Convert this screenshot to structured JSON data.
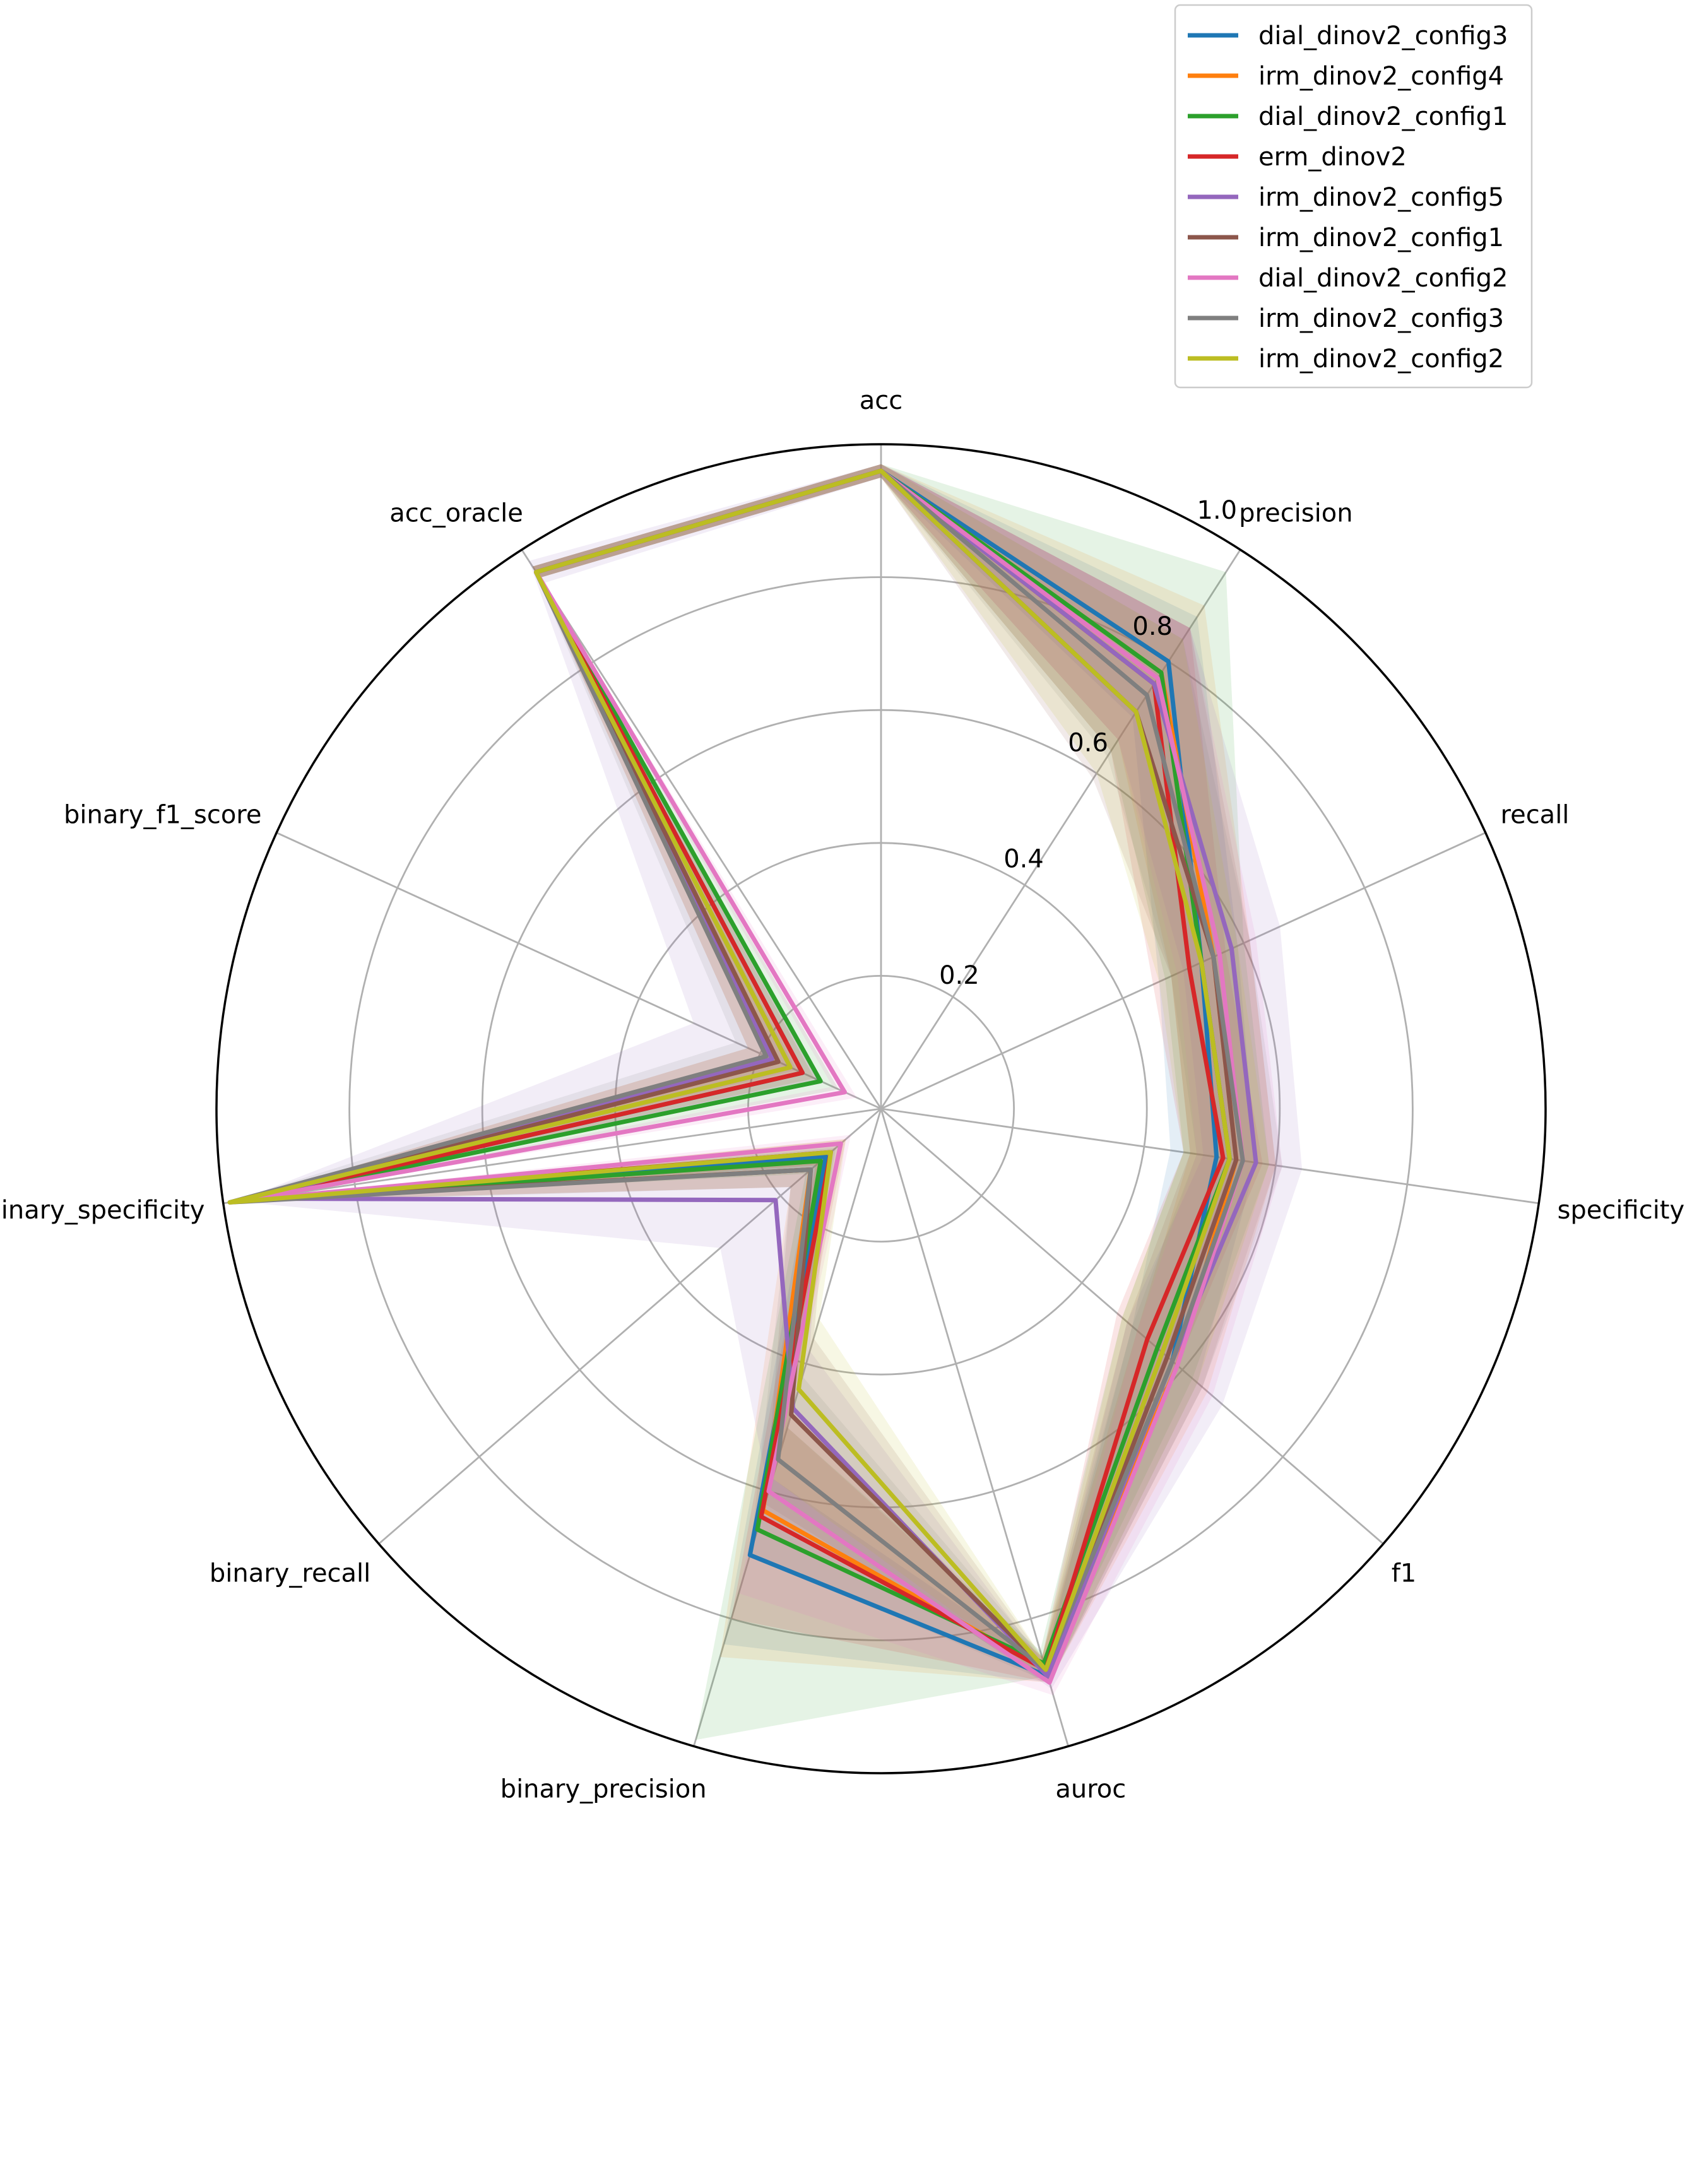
{
  "chart_data": {
    "type": "radar",
    "title": "",
    "axes": [
      "acc",
      "precision",
      "recall",
      "specificity",
      "f1",
      "auroc",
      "binary_precision",
      "binary_recall",
      "binary_specificity",
      "binary_f1_score",
      "acc_oracle"
    ],
    "rlim": [
      0,
      1.0
    ],
    "radial_ticks": [
      0.2,
      0.4,
      0.6,
      0.8,
      1.0
    ],
    "radial_tick_labels": [
      "0.2",
      "0.4",
      "0.6",
      "0.8",
      "1.0"
    ],
    "grid": true,
    "legend_position": "top-right",
    "series": [
      {
        "name": "dial_dinov2_config3",
        "color": "#1f77b4",
        "values": [
          0.96,
          0.8,
          0.53,
          0.51,
          0.58,
          0.89,
          0.7,
          0.11,
          0.97,
          0.13,
          0.96
        ],
        "lower": [
          0.95,
          0.7,
          0.46,
          0.44,
          0.5,
          0.87,
          0.58,
          0.08,
          0.96,
          0.1,
          0.95
        ],
        "upper": [
          0.97,
          0.88,
          0.59,
          0.57,
          0.63,
          0.9,
          0.84,
          0.14,
          0.98,
          0.17,
          0.97
        ]
      },
      {
        "name": "irm_dinov2_config4",
        "color": "#ff7f0e",
        "values": [
          0.96,
          0.78,
          0.55,
          0.54,
          0.59,
          0.88,
          0.63,
          0.14,
          0.97,
          0.17,
          0.96
        ],
        "lower": [
          0.95,
          0.66,
          0.48,
          0.47,
          0.51,
          0.86,
          0.48,
          0.1,
          0.96,
          0.13,
          0.95
        ],
        "upper": [
          0.97,
          0.9,
          0.61,
          0.6,
          0.65,
          0.9,
          0.86,
          0.18,
          0.98,
          0.22,
          0.97
        ]
      },
      {
        "name": "dial_dinov2_config1",
        "color": "#2ca02c",
        "values": [
          0.96,
          0.78,
          0.53,
          0.53,
          0.55,
          0.87,
          0.66,
          0.12,
          0.97,
          0.1,
          0.96
        ],
        "lower": [
          0.95,
          0.64,
          0.47,
          0.46,
          0.48,
          0.85,
          0.5,
          0.09,
          0.96,
          0.07,
          0.95
        ],
        "upper": [
          0.97,
          0.96,
          0.6,
          0.59,
          0.62,
          0.89,
          0.99,
          0.15,
          0.98,
          0.13,
          0.97
        ]
      },
      {
        "name": "erm_dinov2",
        "color": "#d62728",
        "values": [
          0.96,
          0.76,
          0.51,
          0.52,
          0.53,
          0.88,
          0.64,
          0.1,
          0.97,
          0.13,
          0.96
        ],
        "lower": [
          0.95,
          0.64,
          0.45,
          0.46,
          0.47,
          0.86,
          0.5,
          0.07,
          0.96,
          0.1,
          0.95
        ],
        "upper": [
          0.97,
          0.86,
          0.57,
          0.58,
          0.59,
          0.9,
          0.8,
          0.13,
          0.98,
          0.17,
          0.97
        ]
      },
      {
        "name": "irm_dinov2_config5",
        "color": "#9467bd",
        "values": [
          0.96,
          0.76,
          0.58,
          0.57,
          0.58,
          0.89,
          0.47,
          0.21,
          0.95,
          0.18,
          0.96
        ],
        "lower": [
          0.95,
          0.66,
          0.5,
          0.49,
          0.49,
          0.87,
          0.38,
          0.12,
          0.92,
          0.11,
          0.94
        ],
        "upper": [
          0.97,
          0.86,
          0.66,
          0.64,
          0.68,
          0.91,
          0.6,
          0.32,
          0.98,
          0.31,
          0.98
        ]
      },
      {
        "name": "irm_dinov2_config1",
        "color": "#8c564b",
        "values": [
          0.96,
          0.71,
          0.55,
          0.54,
          0.57,
          0.88,
          0.48,
          0.14,
          0.97,
          0.17,
          0.96
        ],
        "lower": [
          0.95,
          0.59,
          0.48,
          0.47,
          0.49,
          0.86,
          0.36,
          0.1,
          0.96,
          0.13,
          0.95
        ],
        "upper": [
          0.97,
          0.86,
          0.61,
          0.6,
          0.64,
          0.9,
          0.62,
          0.18,
          0.98,
          0.22,
          0.97
        ]
      },
      {
        "name": "dial_dinov2_config2",
        "color": "#e377c2",
        "values": [
          0.96,
          0.77,
          0.56,
          0.55,
          0.59,
          0.9,
          0.6,
          0.08,
          0.97,
          0.06,
          0.96
        ],
        "lower": [
          0.95,
          0.66,
          0.49,
          0.48,
          0.51,
          0.88,
          0.47,
          0.06,
          0.96,
          0.04,
          0.95
        ],
        "upper": [
          0.97,
          0.86,
          0.62,
          0.61,
          0.66,
          0.92,
          0.76,
          0.1,
          0.98,
          0.08,
          0.97
        ]
      },
      {
        "name": "irm_dinov2_config3",
        "color": "#7f7f7f",
        "values": [
          0.96,
          0.74,
          0.55,
          0.55,
          0.58,
          0.88,
          0.55,
          0.14,
          0.99,
          0.19,
          0.96
        ],
        "lower": [
          0.95,
          0.63,
          0.48,
          0.48,
          0.5,
          0.86,
          0.42,
          0.1,
          0.98,
          0.14,
          0.95
        ],
        "upper": [
          0.97,
          0.84,
          0.61,
          0.61,
          0.64,
          0.9,
          0.7,
          0.18,
          1.0,
          0.24,
          0.97
        ]
      },
      {
        "name": "irm_dinov2_config2",
        "color": "#bcbd22",
        "values": [
          0.96,
          0.71,
          0.53,
          0.53,
          0.56,
          0.88,
          0.44,
          0.1,
          0.99,
          0.15,
          0.96
        ],
        "lower": [
          0.95,
          0.6,
          0.46,
          0.46,
          0.48,
          0.86,
          0.33,
          0.07,
          0.98,
          0.11,
          0.95
        ],
        "upper": [
          0.97,
          0.84,
          0.59,
          0.59,
          0.63,
          0.9,
          0.58,
          0.13,
          1.0,
          0.19,
          0.97
        ]
      }
    ]
  }
}
